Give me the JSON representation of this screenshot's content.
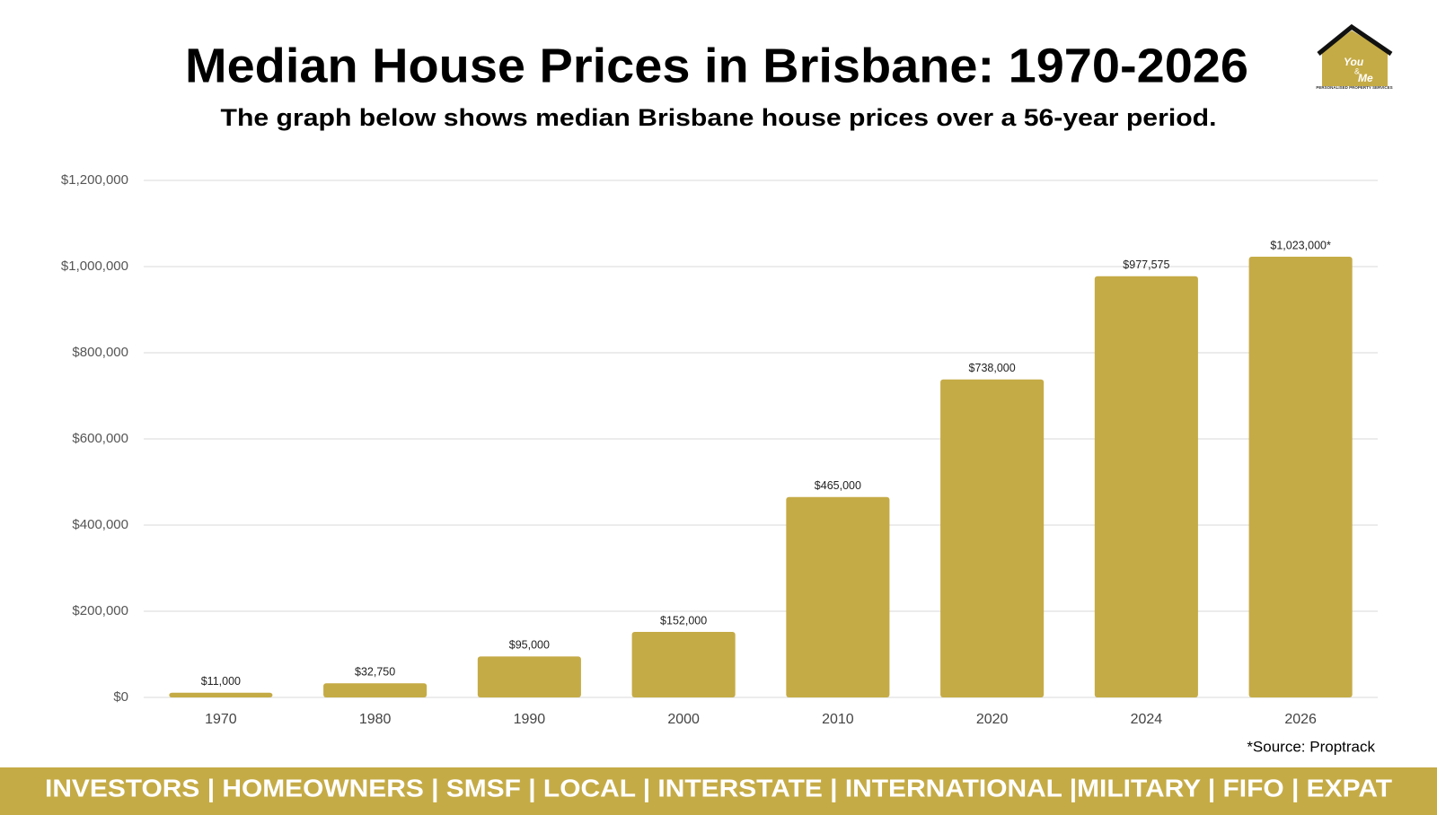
{
  "chart_data": {
    "type": "bar",
    "title": "Median House Prices in Brisbane: 1970-2026",
    "subtitle": "The graph below shows median Brisbane house prices over a 56-year period.",
    "categories": [
      "1970",
      "1980",
      "1990",
      "2000",
      "2010",
      "2020",
      "2024",
      "2026"
    ],
    "values": [
      11000,
      32750,
      95000,
      152000,
      465000,
      738000,
      977575,
      1023000
    ],
    "value_labels": [
      "$11,000",
      "$32,750",
      "$95,000",
      "$152,000",
      "$465,000",
      "$738,000",
      "$977,575",
      "$1,023,000*"
    ],
    "color": "#c5ab46",
    "ylim": [
      0,
      1200000
    ],
    "yticks": [
      {
        "value": 0,
        "label": "$0"
      },
      {
        "value": 200000,
        "label": "$200,000"
      },
      {
        "value": 400000,
        "label": "$400,000"
      },
      {
        "value": 600000,
        "label": "$600,000"
      },
      {
        "value": 800000,
        "label": "$800,000"
      },
      {
        "value": 1000000,
        "label": "$1,000,000"
      },
      {
        "value": 1200000,
        "label": "$1,200,000"
      }
    ],
    "grid": true,
    "source": "*Source: Proptrack"
  },
  "logo": {
    "lines": [
      "You",
      "&",
      "Me"
    ],
    "tagline": "PERSONALISED PROPERTY SERVICES"
  },
  "footer": "INVESTORS | HOMEOWNERS | SMSF | LOCAL | INTERSTATE | INTERNATIONAL |MILITARY | FIFO | EXPAT"
}
